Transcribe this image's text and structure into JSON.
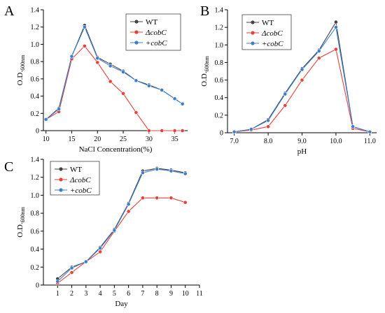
{
  "colors": {
    "WT": "#444444",
    "dcobC": "#e8403a",
    "pcobC": "#3b7fd0"
  },
  "chart_data": [
    {
      "type": "line",
      "panel_label": "A",
      "xlabel": "NaCl Concentration(%)",
      "ylabel": "O.D.",
      "ylabel_sub": "600nm",
      "xlim": [
        9.5,
        37.5
      ],
      "ylim": [
        0,
        1.4
      ],
      "xticks": [
        10,
        15,
        20,
        25,
        30,
        35
      ],
      "yticks": [
        0,
        0.2,
        0.4,
        0.6,
        0.8,
        1.0,
        1.2,
        1.4
      ],
      "ytick_labels": [
        "0",
        "0.2",
        "0.4",
        "0.6",
        "0.8",
        "1.0",
        "1.2",
        "1.4"
      ],
      "x": [
        10,
        12.5,
        15,
        17.5,
        20,
        22.5,
        25,
        27.5,
        30,
        32.5,
        35,
        36.5
      ],
      "legend_position": "top-right",
      "series": [
        {
          "name": "WT",
          "key": "WT",
          "values": [
            0.13,
            0.26,
            0.86,
            1.22,
            0.85,
            0.77,
            0.69,
            0.58,
            0.53,
            0.47,
            0.37,
            0.31
          ]
        },
        {
          "name": "ΔcobC",
          "key": "dcobC",
          "values": [
            0.13,
            0.22,
            0.83,
            0.98,
            0.79,
            0.57,
            0.43,
            0.21,
            0.0,
            0.0,
            0.0,
            0.0
          ]
        },
        {
          "name": "+cobC",
          "key": "pcobC",
          "values": [
            0.13,
            0.25,
            0.86,
            1.2,
            0.84,
            0.75,
            0.68,
            0.58,
            0.52,
            0.47,
            0.37,
            0.31
          ]
        }
      ]
    },
    {
      "type": "line",
      "panel_label": "B",
      "xlabel": "pH",
      "ylabel": "O.D.",
      "ylabel_sub": "600nm",
      "xlim": [
        6.8,
        11.2
      ],
      "ylim": [
        0,
        1.4
      ],
      "xticks": [
        7,
        8,
        9,
        10,
        11
      ],
      "xtick_labels": [
        "7.0",
        "8.0",
        "9.0",
        "10.0",
        "11.0"
      ],
      "yticks": [
        0,
        0.2,
        0.4,
        0.6,
        0.8,
        1.0,
        1.2,
        1.4
      ],
      "ytick_labels": [
        "0",
        "0.2",
        "0.4",
        "0.6",
        "0.8",
        "1.0",
        "1.2",
        "1.4"
      ],
      "x": [
        7.0,
        7.5,
        8.0,
        8.5,
        9.0,
        9.5,
        10.0,
        10.5,
        11.0
      ],
      "legend_position": "top-left",
      "series": [
        {
          "name": "WT",
          "key": "WT",
          "values": [
            0.01,
            0.04,
            0.15,
            0.45,
            0.73,
            0.94,
            1.26,
            0.07,
            0.01
          ]
        },
        {
          "name": "ΔcobC",
          "key": "dcobC",
          "values": [
            0.01,
            0.03,
            0.07,
            0.31,
            0.6,
            0.85,
            0.95,
            0.05,
            0.01
          ]
        },
        {
          "name": "+cobC",
          "key": "pcobC",
          "values": [
            0.01,
            0.04,
            0.14,
            0.44,
            0.72,
            0.93,
            1.2,
            0.07,
            0.01
          ]
        }
      ]
    },
    {
      "type": "line",
      "panel_label": "C",
      "xlabel": "Day",
      "ylabel": "O.D.",
      "ylabel_sub": "600nm",
      "xlim": [
        0,
        11
      ],
      "ylim": [
        0,
        1.4
      ],
      "xticks": [
        1,
        2,
        3,
        4,
        5,
        6,
        7,
        8,
        9,
        10,
        11
      ],
      "yticks": [
        0,
        0.2,
        0.4,
        0.6,
        0.8,
        1.0,
        1.2,
        1.4
      ],
      "ytick_labels": [
        "0",
        "0.2",
        "0.4",
        "0.6",
        "0.8",
        "1.0",
        "1.2",
        "1.4"
      ],
      "x": [
        1,
        2,
        3,
        4,
        5,
        6,
        7,
        8,
        9,
        10
      ],
      "legend_position": "top-left",
      "series": [
        {
          "name": "WT",
          "key": "WT",
          "values": [
            0.07,
            0.2,
            0.26,
            0.42,
            0.62,
            0.91,
            1.27,
            1.3,
            1.28,
            1.25
          ]
        },
        {
          "name": "ΔcobC",
          "key": "dcobC",
          "values": [
            0.02,
            0.14,
            0.26,
            0.37,
            0.6,
            0.82,
            0.97,
            0.97,
            0.97,
            0.92
          ]
        },
        {
          "name": "+cobC",
          "key": "pcobC",
          "values": [
            0.04,
            0.19,
            0.26,
            0.41,
            0.61,
            0.9,
            1.25,
            1.29,
            1.27,
            1.24
          ]
        }
      ]
    }
  ]
}
